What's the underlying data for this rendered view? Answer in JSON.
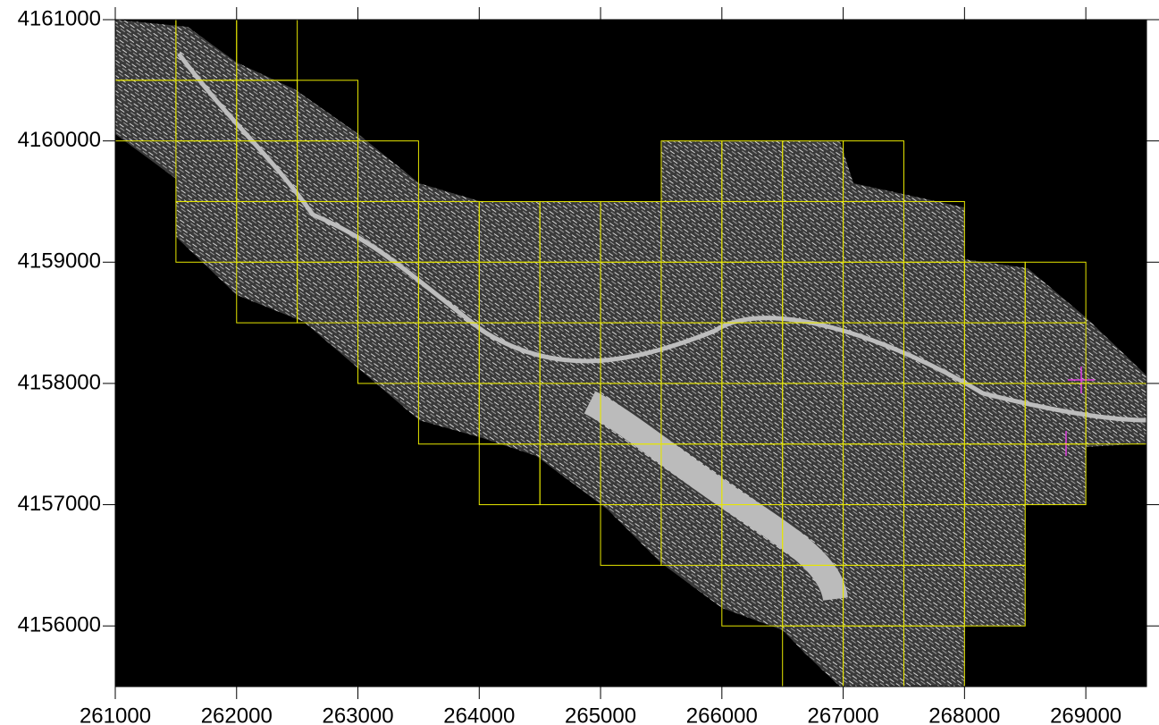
{
  "chart_data": {
    "type": "tile-map",
    "xlim": [
      261000,
      269500
    ],
    "ylim": [
      4155500,
      4161000
    ],
    "xticks": [
      261000,
      262000,
      263000,
      264000,
      265000,
      266000,
      267000,
      268000,
      269000
    ],
    "yticks": [
      4156000,
      4157000,
      4158000,
      4159000,
      4160000,
      4161000
    ],
    "tile_size": 500,
    "tile_color": "#e6e600",
    "tile_rows": [
      {
        "y": 4160500,
        "x": [
          261000,
          261500,
          262000
        ]
      },
      {
        "y": 4160000,
        "x": [
          261000,
          261500,
          262000,
          262500
        ]
      },
      {
        "y": 4159500,
        "x": [
          261500,
          262000,
          262500,
          263000,
          265500,
          266000,
          266500,
          267000
        ]
      },
      {
        "y": 4159000,
        "x": [
          261500,
          262000,
          262500,
          263000,
          263500,
          264000,
          264500,
          265000,
          265500,
          266000,
          266500,
          267000,
          267500
        ]
      },
      {
        "y": 4158500,
        "x": [
          262000,
          262500,
          263000,
          263500,
          264000,
          264500,
          265000,
          265500,
          266000,
          266500,
          267000,
          267500,
          268000,
          268500
        ]
      },
      {
        "y": 4158000,
        "x": [
          263000,
          263500,
          264000,
          264500,
          265000,
          265500,
          266000,
          266500,
          267000,
          267500,
          268000,
          268500
        ]
      },
      {
        "y": 4157500,
        "x": [
          263500,
          264000,
          264500,
          265000,
          265500,
          266000,
          266500,
          267000,
          267500,
          268000,
          268500,
          269000
        ]
      },
      {
        "y": 4157000,
        "x": [
          264000,
          264500,
          265000,
          265500,
          266000,
          266500,
          267000,
          267500,
          268000,
          268500
        ]
      },
      {
        "y": 4156500,
        "x": [
          265000,
          265500,
          266000,
          266500,
          267000,
          267500,
          268000
        ]
      },
      {
        "y": 4156000,
        "x": [
          266000,
          266500,
          267000,
          267500,
          268000
        ]
      },
      {
        "y": 4155500,
        "x": [
          266500,
          267000,
          267500
        ]
      }
    ]
  }
}
